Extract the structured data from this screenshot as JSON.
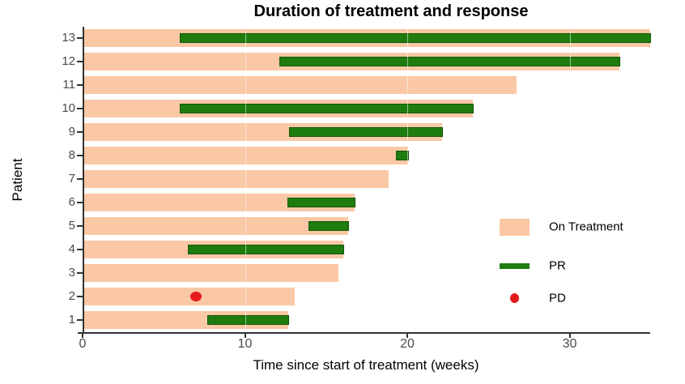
{
  "title": "Duration of treatment and response",
  "axes": {
    "x_label": "Time since start of treatment (weeks)",
    "y_label": "Patient",
    "x_ticks": [
      0,
      10,
      20,
      30
    ],
    "x_range": [
      0,
      35
    ]
  },
  "legend": [
    {
      "key": "on-treatment",
      "label": "On Treatment",
      "swatch": "bar"
    },
    {
      "key": "pr",
      "label": "PR",
      "swatch": "line"
    },
    {
      "key": "pd",
      "label": "PD",
      "swatch": "dot"
    }
  ],
  "colors": {
    "on_treatment": "#fac8a5",
    "pr_fill": "#1e7d0e",
    "pr_border": "#145607",
    "pd": "#e41a1c",
    "axis": "#333333",
    "tick_text": "#4a4a4a"
  },
  "chart_data": {
    "type": "bar",
    "orientation": "horizontal",
    "title": "Duration of treatment and response",
    "xlabel": "Time since start of treatment (weeks)",
    "ylabel": "Patient",
    "xlim": [
      0,
      35
    ],
    "x_ticks": [
      0,
      10,
      20,
      30
    ],
    "grid": false,
    "legend_position": "right-inside",
    "series_meaning": {
      "on_treatment_weeks": "length of peach bar (weeks on treatment)",
      "pr": "[start, end] of dark-green partial-response bar",
      "pd": "week of red progressive-disease dot"
    },
    "patients": [
      {
        "id": 13,
        "on_treatment_weeks": 34.9,
        "pr": [
          6.0,
          34.9
        ],
        "pd": null
      },
      {
        "id": 12,
        "on_treatment_weeks": 33.0,
        "pr": [
          12.1,
          33.0
        ],
        "pd": null
      },
      {
        "id": 11,
        "on_treatment_weeks": 26.7,
        "pr": null,
        "pd": null
      },
      {
        "id": 10,
        "on_treatment_weeks": 24.0,
        "pr": [
          6.0,
          24.0
        ],
        "pd": null
      },
      {
        "id": 9,
        "on_treatment_weeks": 22.1,
        "pr": [
          12.7,
          22.1
        ],
        "pd": null
      },
      {
        "id": 8,
        "on_treatment_weeks": 20.0,
        "pr": [
          19.3,
          20.0
        ],
        "pd": null
      },
      {
        "id": 7,
        "on_treatment_weeks": 18.8,
        "pr": null,
        "pd": null
      },
      {
        "id": 6,
        "on_treatment_weeks": 16.7,
        "pr": [
          12.6,
          16.7
        ],
        "pd": null
      },
      {
        "id": 5,
        "on_treatment_weeks": 16.3,
        "pr": [
          13.9,
          16.3
        ],
        "pd": null
      },
      {
        "id": 4,
        "on_treatment_weeks": 16.0,
        "pr": [
          6.5,
          16.0
        ],
        "pd": null
      },
      {
        "id": 3,
        "on_treatment_weeks": 15.7,
        "pr": null,
        "pd": null
      },
      {
        "id": 2,
        "on_treatment_weeks": 13.0,
        "pr": null,
        "pd": 7.0
      },
      {
        "id": 1,
        "on_treatment_weeks": 12.6,
        "pr": [
          7.7,
          12.6
        ],
        "pd": null
      }
    ]
  }
}
